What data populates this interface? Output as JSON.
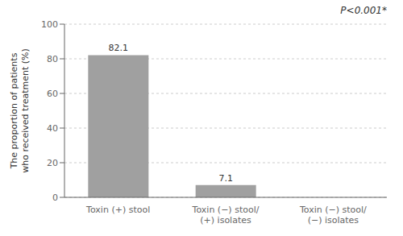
{
  "chart_data": {
    "type": "bar",
    "categories": [
      "Toxin (+) stool",
      "Toxin (−) stool/\n(+) isolates",
      "Toxin (−) stool/\n(−) isolates"
    ],
    "values": [
      82.1,
      7.1,
      0
    ],
    "color": "#a0a0a0",
    "ylim": [
      0,
      100
    ],
    "yticks": [
      0,
      20,
      40,
      60,
      80,
      100
    ],
    "y_label": "The proportion of patients\nwho received treatment (%)",
    "annotation": "P<0.001*",
    "grid": true,
    "data_labels": true
  }
}
